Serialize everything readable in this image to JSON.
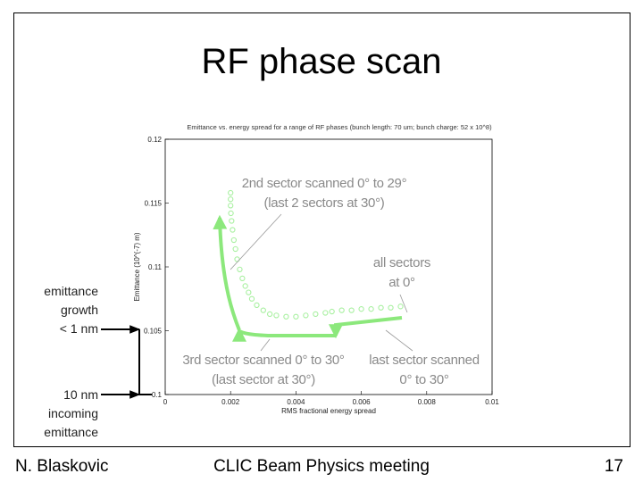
{
  "slide": {
    "title": "RF phase scan",
    "footer_left": "N. Blaskovic",
    "footer_center": "CLIC Beam Physics meeting",
    "footer_right": "17"
  },
  "annotations": {
    "second_sector": [
      "2nd sector scanned 0° to 29°",
      "(last 2 sectors at 30°)"
    ],
    "all_sectors": [
      "all sectors",
      "at 0°"
    ],
    "third_sector": [
      "3rd sector scanned 0° to 30°",
      "(last sector at 30°)"
    ],
    "last_sector": [
      "last sector scanned",
      "0° to 30°"
    ],
    "emittance_growth": [
      "emittance",
      "growth",
      "< 1 nm"
    ],
    "incoming": [
      "10 nm",
      "incoming",
      "emittance"
    ]
  },
  "colors": {
    "marker": "#a8f0a0",
    "arrow": "#8ce87c",
    "axis": "#000000"
  },
  "chart_data": {
    "type": "scatter",
    "title": "Emittance vs. energy spread for a range of RF phases  (bunch length: 70 um; bunch charge: 52 x 10^8)",
    "xlabel": "RMS fractional energy spread",
    "ylabel": "Emittance (10^(-7) m)",
    "xlim": [
      0,
      0.01
    ],
    "ylim": [
      0.1,
      0.12
    ],
    "xticks": [
      "0",
      "0.002",
      "0.004",
      "0.006",
      "0.008",
      "0.01"
    ],
    "yticks": [
      "0.1",
      "0.105",
      "0.11",
      "0.115",
      "0.12"
    ],
    "series": [
      {
        "name": "2nd sector scanned 0° to 29°",
        "x": [
          0.002,
          0.002,
          0.002,
          0.00201,
          0.00203,
          0.00206,
          0.0021,
          0.00215,
          0.0022,
          0.00228,
          0.00236,
          0.00245,
          0.00255
        ],
        "y": [
          0.1158,
          0.1153,
          0.1148,
          0.1142,
          0.1136,
          0.1129,
          0.1121,
          0.1114,
          0.1106,
          0.1098,
          0.1091,
          0.1085,
          0.108
        ]
      },
      {
        "name": "3rd sector scanned 0° to 30°",
        "x": [
          0.00265,
          0.0028,
          0.003,
          0.0032,
          0.0034,
          0.0037,
          0.004,
          0.0043,
          0.0046,
          0.0049
        ],
        "y": [
          0.1075,
          0.107,
          0.1066,
          0.1063,
          0.1062,
          0.1061,
          0.1061,
          0.1062,
          0.1063,
          0.1064
        ]
      },
      {
        "name": "last sector scanned 0° to 30°",
        "x": [
          0.0051,
          0.0054,
          0.0057,
          0.006,
          0.0063,
          0.0066,
          0.0069,
          0.0072
        ],
        "y": [
          0.1065,
          0.1066,
          0.1066,
          0.1067,
          0.1067,
          0.1068,
          0.1068,
          0.1069
        ]
      }
    ]
  }
}
